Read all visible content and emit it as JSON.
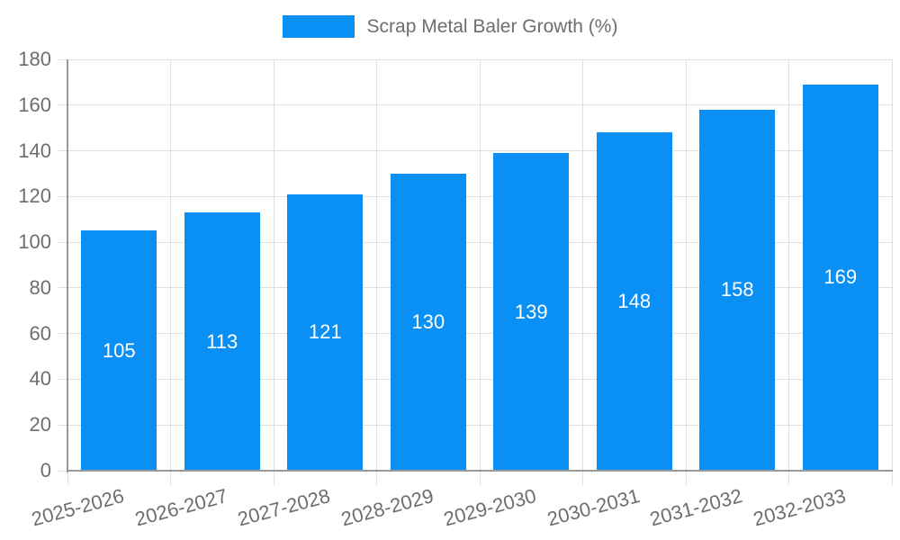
{
  "legend": {
    "items": [
      {
        "label": "Scrap Metal Baler Growth (%)"
      }
    ]
  },
  "chart_data": {
    "type": "bar",
    "title": "Scrap Metal Baler Growth (%)",
    "categories": [
      "2025-2026",
      "2026-2027",
      "2027-2028",
      "2028-2029",
      "2029-2030",
      "2030-2031",
      "2031-2032",
      "2032-2033"
    ],
    "series": [
      {
        "name": "Scrap Metal Baler Growth (%)",
        "values": [
          105,
          113,
          121,
          130,
          139,
          148,
          158,
          169
        ]
      }
    ],
    "xlabel": "",
    "ylabel": "",
    "ylim": [
      0,
      180
    ],
    "ytick_step": 20,
    "yticks": [
      0,
      20,
      40,
      60,
      80,
      100,
      120,
      140,
      160,
      180
    ],
    "grid": true,
    "legend_position": "top-center",
    "value_label_position": "inside-center",
    "colors": {
      "bar": "#0A90F5",
      "grid": "#E0E0E0",
      "axis": "#999999",
      "text": "#6E6E6E",
      "value_text": "#FFFFFF",
      "background": "#FFFFFF"
    }
  }
}
